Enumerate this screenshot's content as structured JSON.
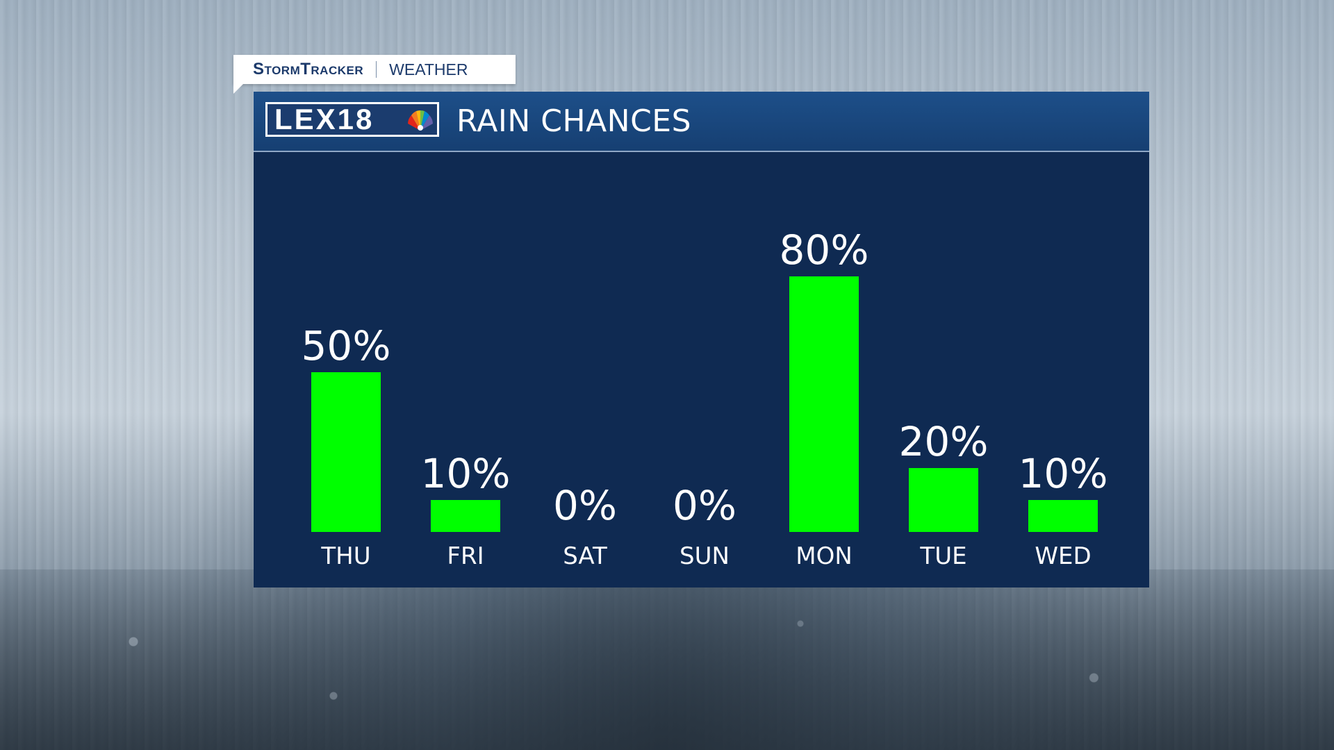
{
  "brand": {
    "name": "StormTracker",
    "sub": "WEATHER"
  },
  "logo": {
    "text": "LEX18",
    "icon": "nbc-peacock-icon"
  },
  "panel": {
    "title": "RAIN CHANCES"
  },
  "colors": {
    "panel_bg": "#0f2a52",
    "header_bg": "#1d4f89",
    "bar": "#00ff00",
    "text": "#ffffff"
  },
  "chart_data": {
    "type": "bar",
    "title": "RAIN CHANCES",
    "categories": [
      "THU",
      "FRI",
      "SAT",
      "SUN",
      "MON",
      "TUE",
      "WED"
    ],
    "values": [
      50,
      10,
      0,
      0,
      80,
      20,
      10
    ],
    "value_labels": [
      "50%",
      "10%",
      "0%",
      "0%",
      "80%",
      "20%",
      "10%"
    ],
    "xlabel": "",
    "ylabel": "",
    "ylim": [
      0,
      100
    ],
    "grid": false,
    "legend": "none"
  }
}
